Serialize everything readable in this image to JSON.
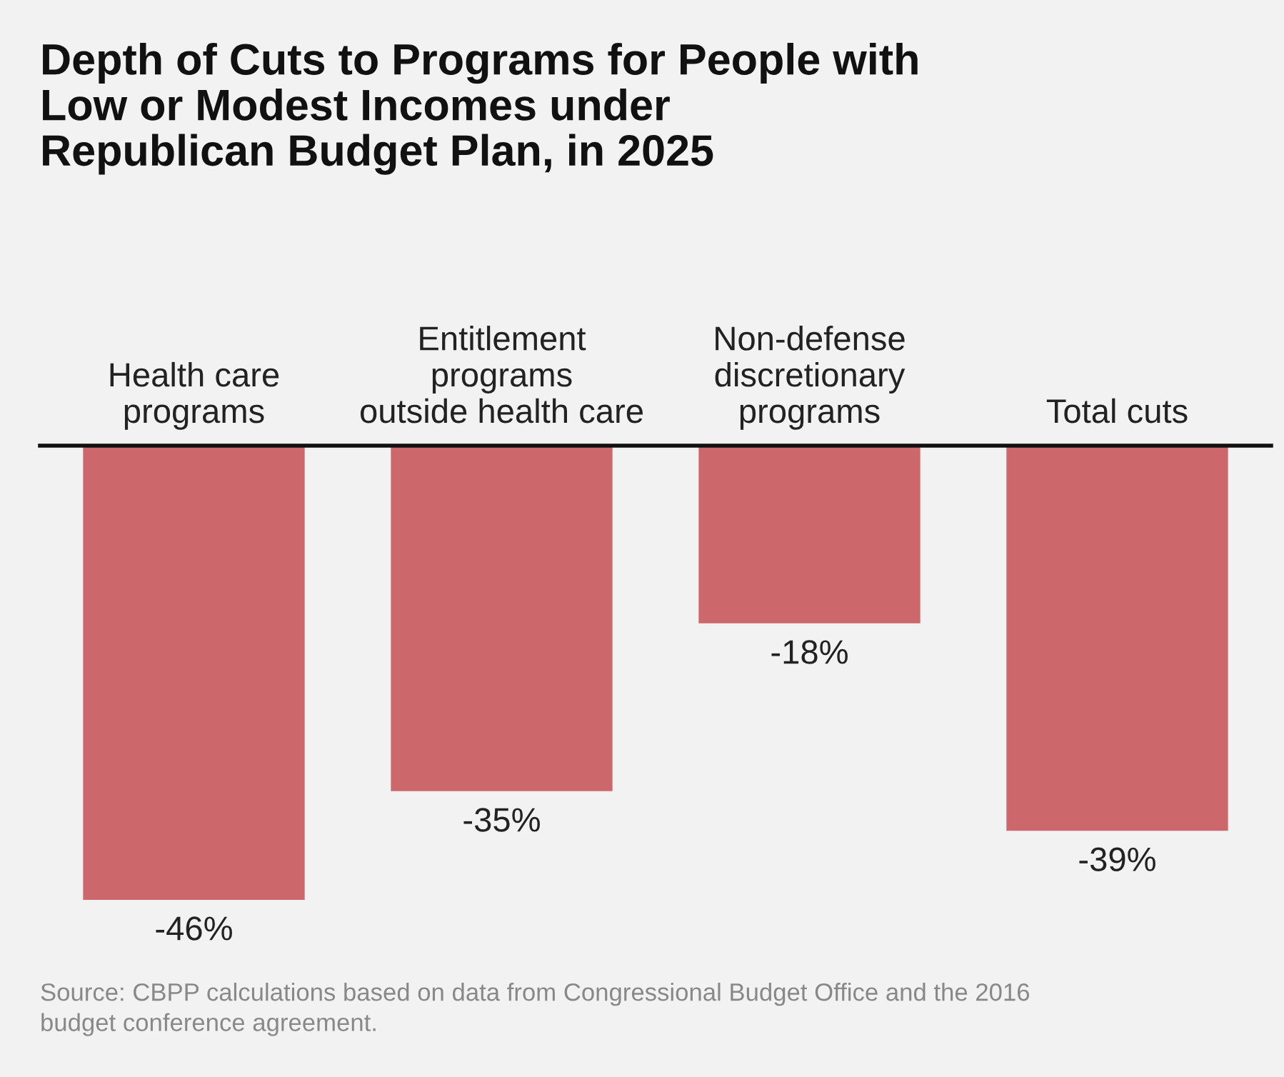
{
  "chart_data": {
    "type": "bar",
    "title": "Depth of Cuts to Programs for People with\nLow or Modest Incomes under\nRepublican Budget Plan, in 2025",
    "categories": [
      "Health care\nprograms",
      "Entitlement\nprograms\noutside health care",
      "Non-defense\ndiscretionary\nprograms",
      "Total cuts"
    ],
    "values": [
      -46,
      -35,
      -18,
      -39
    ],
    "value_labels": [
      "-46%",
      "-35%",
      "-18%",
      "-39%"
    ],
    "color": "#cc686b",
    "grid": false,
    "legend": false,
    "annotations": [
      "Source: CBPP calculations based on data from Congressional Budget Office and the 2016\nbudget conference agreement."
    ]
  }
}
